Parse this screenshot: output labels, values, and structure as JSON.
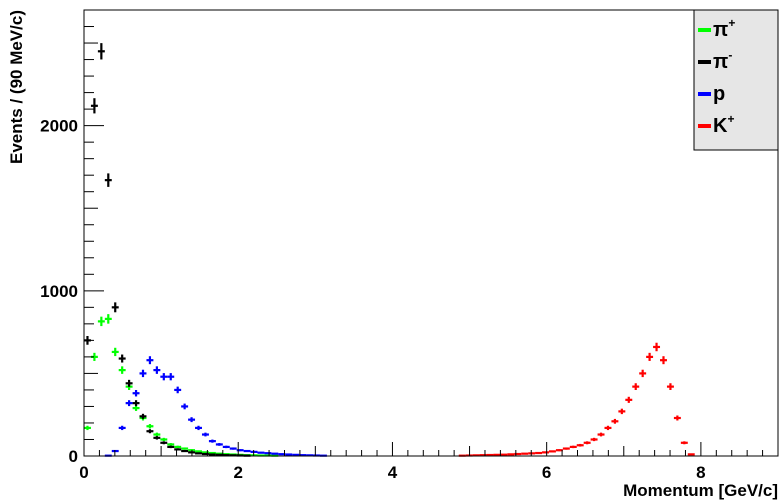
{
  "chart_data": {
    "type": "scatter",
    "title": "",
    "xlabel": "Momentum [GeV/c]",
    "ylabel": "Events / (90 MeV/c)",
    "xlim": [
      0,
      9
    ],
    "ylim": [
      0,
      2700
    ],
    "xticks": [
      0,
      2,
      4,
      6,
      8
    ],
    "yticks": [
      0,
      1000,
      2000
    ],
    "xtick_labels": [
      "0",
      "2",
      "4",
      "6",
      "8"
    ],
    "ytick_labels": [
      "0",
      "1000",
      "2000"
    ],
    "grid": false,
    "legend_position": "top-right",
    "bin_width": 0.09,
    "series": [
      {
        "name": "π+",
        "label_base": "π",
        "label_sup": "+",
        "color": "#00ff00",
        "points": [
          [
            0.045,
            170
          ],
          [
            0.135,
            600
          ],
          [
            0.225,
            815
          ],
          [
            0.315,
            830
          ],
          [
            0.405,
            630
          ],
          [
            0.495,
            520
          ],
          [
            0.585,
            420
          ],
          [
            0.675,
            290
          ],
          [
            0.765,
            230
          ],
          [
            0.855,
            180
          ],
          [
            0.945,
            130
          ],
          [
            1.035,
            100
          ],
          [
            1.125,
            70
          ],
          [
            1.215,
            55
          ],
          [
            1.305,
            45
          ],
          [
            1.395,
            35
          ],
          [
            1.485,
            28
          ],
          [
            1.575,
            22
          ],
          [
            1.665,
            18
          ],
          [
            1.755,
            14
          ],
          [
            1.845,
            11
          ],
          [
            1.935,
            9
          ],
          [
            2.025,
            7
          ],
          [
            2.115,
            5
          ],
          [
            2.205,
            4
          ],
          [
            2.295,
            3
          ],
          [
            2.385,
            3
          ],
          [
            2.475,
            2
          ]
        ]
      },
      {
        "name": "π-",
        "label_base": "π",
        "label_sup": "-",
        "color": "#000000",
        "points": [
          [
            0.045,
            700
          ],
          [
            0.135,
            2120
          ],
          [
            0.225,
            2450
          ],
          [
            0.315,
            1670
          ],
          [
            0.405,
            900
          ],
          [
            0.495,
            590
          ],
          [
            0.585,
            440
          ],
          [
            0.675,
            320
          ],
          [
            0.765,
            240
          ],
          [
            0.855,
            150
          ],
          [
            0.945,
            110
          ],
          [
            1.035,
            80
          ],
          [
            1.125,
            55
          ],
          [
            1.215,
            40
          ],
          [
            1.305,
            30
          ],
          [
            1.395,
            22
          ],
          [
            1.485,
            16
          ],
          [
            1.575,
            12
          ],
          [
            1.665,
            9
          ],
          [
            1.755,
            7
          ],
          [
            1.845,
            5
          ],
          [
            1.935,
            4
          ],
          [
            2.025,
            3
          ],
          [
            2.115,
            2
          ]
        ]
      },
      {
        "name": "p",
        "label_base": "p",
        "label_sup": "",
        "color": "#0000ff",
        "points": [
          [
            0.315,
            2
          ],
          [
            0.405,
            30
          ],
          [
            0.495,
            170
          ],
          [
            0.585,
            320
          ],
          [
            0.675,
            380
          ],
          [
            0.765,
            500
          ],
          [
            0.855,
            580
          ],
          [
            0.945,
            520
          ],
          [
            1.035,
            480
          ],
          [
            1.125,
            480
          ],
          [
            1.215,
            400
          ],
          [
            1.305,
            300
          ],
          [
            1.395,
            220
          ],
          [
            1.485,
            170
          ],
          [
            1.575,
            130
          ],
          [
            1.665,
            90
          ],
          [
            1.755,
            70
          ],
          [
            1.845,
            55
          ],
          [
            1.935,
            45
          ],
          [
            2.025,
            35
          ],
          [
            2.115,
            30
          ],
          [
            2.205,
            25
          ],
          [
            2.295,
            20
          ],
          [
            2.385,
            17
          ],
          [
            2.475,
            14
          ],
          [
            2.565,
            11
          ],
          [
            2.655,
            9
          ],
          [
            2.745,
            7
          ],
          [
            2.835,
            5
          ],
          [
            2.925,
            4
          ],
          [
            3.015,
            3
          ],
          [
            3.105,
            2
          ]
        ]
      },
      {
        "name": "K+",
        "label_base": "K",
        "label_sup": "+",
        "color": "#ff0000",
        "points": [
          [
            4.905,
            2
          ],
          [
            4.995,
            3
          ],
          [
            5.085,
            4
          ],
          [
            5.175,
            5
          ],
          [
            5.265,
            6
          ],
          [
            5.355,
            7
          ],
          [
            5.445,
            8
          ],
          [
            5.535,
            10
          ],
          [
            5.625,
            12
          ],
          [
            5.715,
            14
          ],
          [
            5.805,
            16
          ],
          [
            5.895,
            18
          ],
          [
            5.985,
            22
          ],
          [
            6.075,
            28
          ],
          [
            6.165,
            35
          ],
          [
            6.255,
            45
          ],
          [
            6.345,
            55
          ],
          [
            6.435,
            65
          ],
          [
            6.525,
            80
          ],
          [
            6.615,
            100
          ],
          [
            6.705,
            130
          ],
          [
            6.795,
            170
          ],
          [
            6.885,
            210
          ],
          [
            6.975,
            270
          ],
          [
            7.065,
            340
          ],
          [
            7.155,
            420
          ],
          [
            7.245,
            500
          ],
          [
            7.335,
            600
          ],
          [
            7.425,
            660
          ],
          [
            7.515,
            580
          ],
          [
            7.605,
            420
          ],
          [
            7.695,
            230
          ],
          [
            7.785,
            80
          ],
          [
            7.875,
            10
          ]
        ]
      }
    ]
  }
}
